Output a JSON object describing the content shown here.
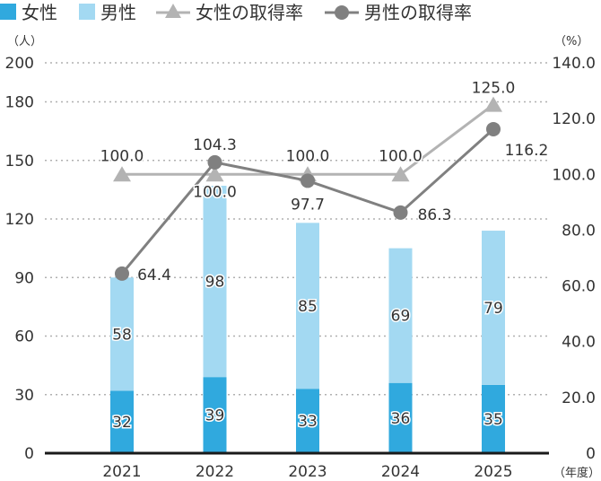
{
  "legend": {
    "female": "女性",
    "male": "男性",
    "female_rate": "女性の取得率",
    "male_rate": "男性の取得率"
  },
  "chart_data": {
    "type": "bar",
    "stacked": true,
    "left_unit": "（人）",
    "right_unit": "（%）",
    "x_unit": "（年度）",
    "categories": [
      "2021",
      "2022",
      "2023",
      "2024",
      "2025"
    ],
    "left_axis": {
      "ylim": [
        0,
        200
      ],
      "ticks": [
        "0",
        "30",
        "60",
        "90",
        "120",
        "150",
        "180",
        "200"
      ]
    },
    "right_axis": {
      "ylim": [
        0,
        140
      ],
      "ticks": [
        "0",
        "20.0",
        "40.0",
        "60.0",
        "80.0",
        "100.0",
        "120.0",
        "140.0"
      ]
    },
    "grid": true,
    "legend_position": "top-left",
    "bar_series": [
      {
        "name": "女性",
        "color": "#30a9de",
        "values": [
          32,
          39,
          33,
          36,
          35
        ],
        "labels": [
          "32",
          "39",
          "33",
          "36",
          "35"
        ]
      },
      {
        "name": "男性",
        "color": "#a3d9f2",
        "values": [
          58,
          98,
          85,
          69,
          79
        ],
        "labels": [
          "58",
          "98",
          "85",
          "69",
          "79"
        ]
      }
    ],
    "line_series": [
      {
        "name": "女性の取得率",
        "color": "#b3b3b3",
        "marker": "triangle",
        "values": [
          100.0,
          100.0,
          100.0,
          100.0,
          125.0
        ],
        "labels": [
          "100.0",
          "100.0",
          "100.0",
          "100.0",
          "125.0"
        ]
      },
      {
        "name": "男性の取得率",
        "color": "#808080",
        "marker": "circle",
        "values": [
          64.4,
          104.3,
          97.7,
          86.3,
          116.2
        ],
        "labels": [
          "64.4",
          "104.3",
          "97.7",
          "86.3",
          "116.2"
        ]
      }
    ]
  }
}
